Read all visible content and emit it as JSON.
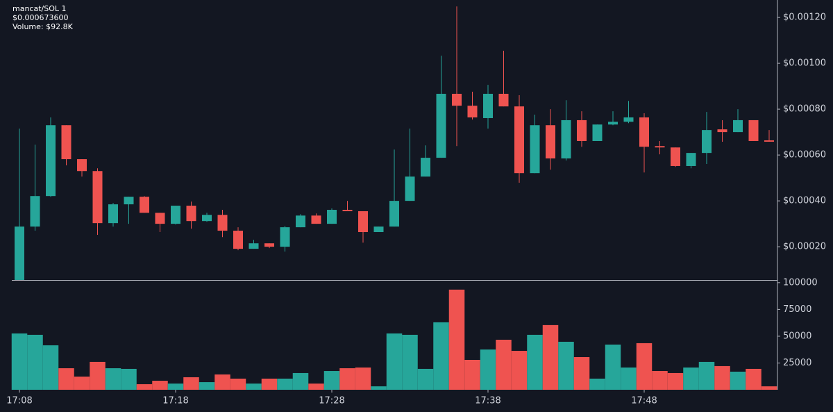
{
  "header": {
    "pair": "mancat/SOL 1",
    "price": "$0.000673600",
    "volume": "Volume: $92.8K"
  },
  "chart_data": [
    {
      "type": "candlestick",
      "up_color": "#26a69a",
      "down_color": "#ef5350",
      "open": [
        5.5e-05,
        0.000288,
        0.000421,
        0.00073,
        0.000582,
        0.00053,
        0.000303,
        0.000385,
        0.000418,
        0.000348,
        0.0003,
        0.000379,
        0.000312,
        0.000339,
        0.00027,
        0.000191,
        0.000215,
        0.0002,
        0.000285,
        0.000336,
        0.0003,
        0.000361,
        0.000355,
        0.000264,
        0.000288,
        0.0004,
        0.000506,
        0.000588,
        0.000867,
        0.000815,
        0.000761,
        0.000867,
        0.000812,
        0.000521,
        0.00073,
        0.000585,
        0.000752,
        0.000661,
        0.000733,
        0.000745,
        0.000764,
        0.000639,
        0.000633,
        0.000552,
        0.000609,
        0.000712,
        0.0007,
        0.000752,
        0.000664
      ],
      "high": [
        0.000715,
        0.000645,
        0.000764,
        0.00073,
        0.000582,
        0.000542,
        0.000391,
        0.000418,
        0.000421,
        0.000348,
        0.000379,
        0.000397,
        0.000348,
        0.000361,
        0.000285,
        0.00023,
        0.000215,
        0.000291,
        0.000342,
        0.000345,
        0.000367,
        0.0004,
        0.000355,
        0.000288,
        0.000624,
        0.000715,
        0.000642,
        0.001033,
        0.001248,
        0.000876,
        0.000906,
        0.001055,
        0.000861,
        0.000776,
        0.0008,
        0.000839,
        0.000791,
        0.000733,
        0.000791,
        0.000836,
        0.000782,
        0.000661,
        0.000633,
        0.000609,
        0.000788,
        0.000752,
        0.0008,
        0.000752,
        0.000709
      ],
      "low": [
        5.5e-05,
        0.00027,
        0.000418,
        0.000555,
        0.000506,
        0.000252,
        0.000288,
        0.0003,
        0.000348,
        0.000264,
        0.000297,
        0.000279,
        0.000309,
        0.000242,
        0.000185,
        0.000191,
        0.000194,
        0.000179,
        0.000285,
        0.0003,
        0.0003,
        0.000355,
        0.000218,
        0.000264,
        0.000288,
        0.0004,
        0.000506,
        0.000588,
        0.000639,
        0.000755,
        0.000715,
        0.000812,
        0.000479,
        0.000521,
        0.000536,
        0.000576,
        0.000636,
        0.000661,
        0.00073,
        0.000739,
        0.000524,
        0.000603,
        0.000548,
        0.000542,
        0.000561,
        0.000658,
        0.0007,
        0.000661,
        0.000658
      ],
      "close": [
        0.000288,
        0.000421,
        0.00073,
        0.000582,
        0.00053,
        0.000303,
        0.000385,
        0.000418,
        0.000348,
        0.0003,
        0.000379,
        0.000312,
        0.000339,
        0.00027,
        0.000191,
        0.000215,
        0.0002,
        0.000285,
        0.000336,
        0.0003,
        0.000361,
        0.000355,
        0.000264,
        0.000288,
        0.0004,
        0.000506,
        0.000588,
        0.000867,
        0.000815,
        0.000764,
        0.000867,
        0.000812,
        0.000521,
        0.00073,
        0.000585,
        0.000752,
        0.000661,
        0.000733,
        0.000745,
        0.000764,
        0.000636,
        0.000633,
        0.000552,
        0.000609,
        0.000709,
        0.0007,
        0.000752,
        0.000661,
        0.000658
      ],
      "ylim": [
        5.5e-05,
        0.001276
      ],
      "yticks": [
        {
          "value": 0.0002,
          "label": "$0.00020"
        },
        {
          "value": 0.0004,
          "label": "$0.00040"
        },
        {
          "value": 0.0006,
          "label": "$0.00060"
        },
        {
          "value": 0.0008,
          "label": "$0.00080"
        },
        {
          "value": 0.001,
          "label": "$0.00100"
        },
        {
          "value": 0.0012,
          "label": "$0.00120"
        }
      ]
    },
    {
      "type": "bar",
      "categories": [
        "17:08",
        null,
        null,
        null,
        null,
        null,
        null,
        null,
        null,
        null,
        "17:18",
        null,
        null,
        null,
        null,
        null,
        null,
        null,
        null,
        null,
        "17:28",
        null,
        null,
        null,
        null,
        null,
        null,
        null,
        null,
        null,
        "17:38",
        null,
        null,
        null,
        null,
        null,
        null,
        null,
        null,
        null,
        "17:48",
        null,
        null,
        null,
        null,
        null,
        null,
        null,
        null
      ],
      "values": [
        52600,
        51300,
        41500,
        20100,
        12300,
        26000,
        20100,
        19500,
        5200,
        8400,
        5800,
        11700,
        7100,
        14300,
        10400,
        5800,
        10400,
        10400,
        15600,
        5800,
        17500,
        20100,
        20800,
        3200,
        52600,
        51300,
        19500,
        63000,
        93500,
        27900,
        37600,
        46700,
        36300,
        51300,
        60400,
        44800,
        30500,
        10400,
        42200,
        20800,
        43500,
        17500,
        15600,
        20800,
        26000,
        22100,
        16900,
        19500,
        3200
      ],
      "ylim": [
        0,
        102500
      ],
      "yticks": [
        25000,
        50000,
        75000,
        100000
      ]
    }
  ]
}
